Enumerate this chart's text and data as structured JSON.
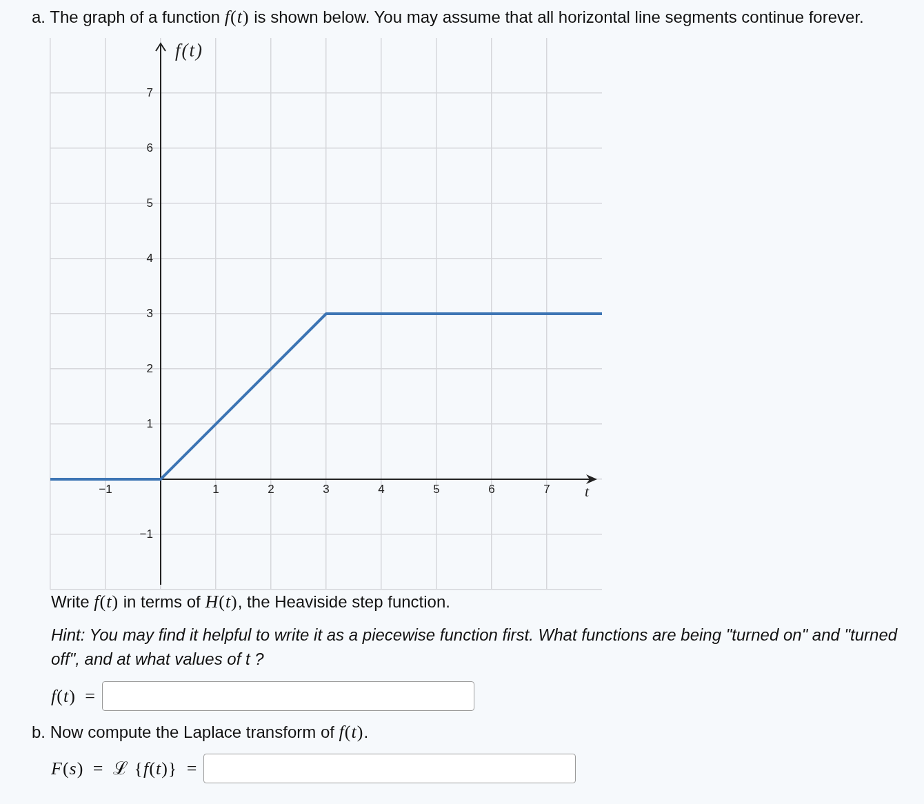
{
  "chart_data": {
    "type": "line",
    "title": "a. The graph of a function f(t) is shown below. You may assume that all horizontal line segments continue forever.",
    "xlabel": "t",
    "ylabel": "f(t)",
    "x": [
      -2,
      0,
      3,
      8
    ],
    "values": [
      0,
      0,
      3,
      3
    ],
    "color": "#3d75b4",
    "xlim": [
      -2,
      8
    ],
    "ylim": [
      -2,
      8
    ],
    "xticks": [
      {
        "value": -2,
        "label": null
      },
      {
        "value": -1,
        "label": "−1"
      },
      {
        "value": 0,
        "label": null
      },
      1,
      2,
      3,
      4,
      5,
      6,
      7
    ],
    "yticks": [
      {
        "value": -2,
        "label": null
      },
      {
        "value": -1,
        "label": "−1"
      },
      {
        "value": 0,
        "label": null
      },
      1,
      2,
      3,
      4,
      5,
      6,
      7
    ],
    "grid": true,
    "marker": "none",
    "annotations": [
      "Write f(t) in terms of H(t), the Heaviside step function.",
      "Hint: You may find it helpful to write it as a piecewise function first. What functions are being \"turned on\" and \"turned off\", and at what values of t ?",
      "f(t) =",
      "b. Now compute the Laplace transform of f(t).",
      "F(s) = ℒ {f(t)} ="
    ]
  }
}
